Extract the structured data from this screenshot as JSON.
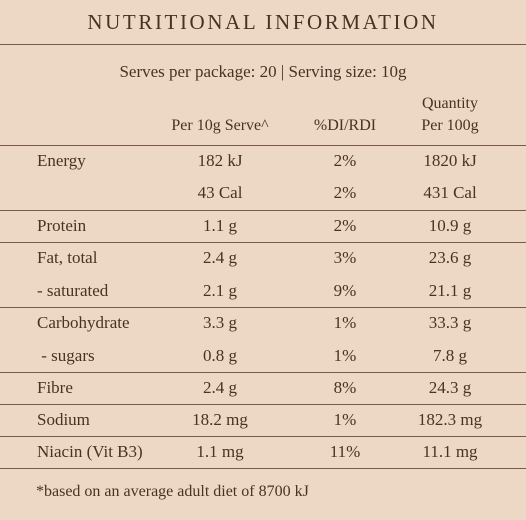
{
  "panel": {
    "title": "NUTRITIONAL INFORMATION",
    "serves": "Serves per package: 20  |  Serving size: 10g",
    "headers": {
      "per_serve": "Per 10g Serve^",
      "di": "%DI/RDI",
      "per100_line1": "Quantity",
      "per100_line2": "Per 100g"
    },
    "rows": [
      {
        "name": "Energy",
        "serve": "182 kJ",
        "di": "2%",
        "per100": "1820 kJ"
      },
      {
        "name": "",
        "serve": "43 Cal",
        "di": "2%",
        "per100": "431 Cal"
      },
      {
        "name": "Protein",
        "serve": "1.1 g",
        "di": "2%",
        "per100": "10.9 g"
      },
      {
        "name": "Fat, total",
        "serve": "2.4 g",
        "di": "3%",
        "per100": "23.6 g"
      },
      {
        "name": "- saturated",
        "serve": "2.1 g",
        "di": "9%",
        "per100": "21.1 g"
      },
      {
        "name": "Carbohydrate",
        "serve": "3.3 g",
        "di": "1%",
        "per100": "33.3 g"
      },
      {
        "name": " - sugars",
        "serve": "0.8 g",
        "di": "1%",
        "per100": "7.8 g"
      },
      {
        "name": "Fibre",
        "serve": "2.4 g",
        "di": "8%",
        "per100": "24.3 g"
      },
      {
        "name": "Sodium",
        "serve": "18.2 mg",
        "di": "1%",
        "per100": "182.3 mg"
      },
      {
        "name": "Niacin (Vit B3)",
        "serve": "1.1 mg",
        "di": "11%",
        "per100": "11.1 mg"
      }
    ],
    "footnote": "*based on an average adult diet of 8700 kJ"
  },
  "colors": {
    "background": "#edd8c6",
    "text": "#4a3222",
    "rule": "#7a5a44"
  }
}
